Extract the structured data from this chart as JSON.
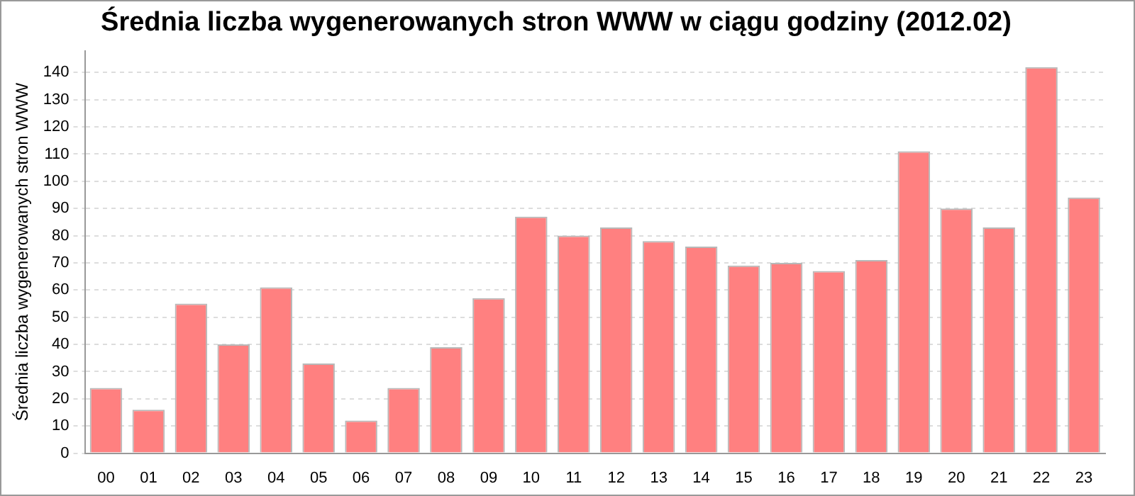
{
  "chart_data": {
    "type": "bar",
    "title": "Średnia liczba wygenerowanych stron WWW w ciągu godziny (2012.02)",
    "ylabel": "Średnia liczba wygenerowanych stron WWW",
    "categories": [
      "00",
      "01",
      "02",
      "03",
      "04",
      "05",
      "06",
      "07",
      "08",
      "09",
      "10",
      "11",
      "12",
      "13",
      "14",
      "15",
      "16",
      "17",
      "18",
      "19",
      "20",
      "21",
      "22",
      "23"
    ],
    "values": [
      24,
      16,
      55,
      40,
      61,
      33,
      12,
      24,
      39,
      57,
      87,
      80,
      83,
      78,
      76,
      69,
      70,
      67,
      71,
      111,
      90,
      83,
      142,
      94
    ],
    "color": "#ff8080",
    "ylim": [
      0,
      148
    ],
    "yticks": [
      0,
      10,
      20,
      30,
      40,
      50,
      60,
      70,
      80,
      90,
      100,
      110,
      120,
      130,
      140
    ],
    "grid": "y",
    "legend": false
  }
}
